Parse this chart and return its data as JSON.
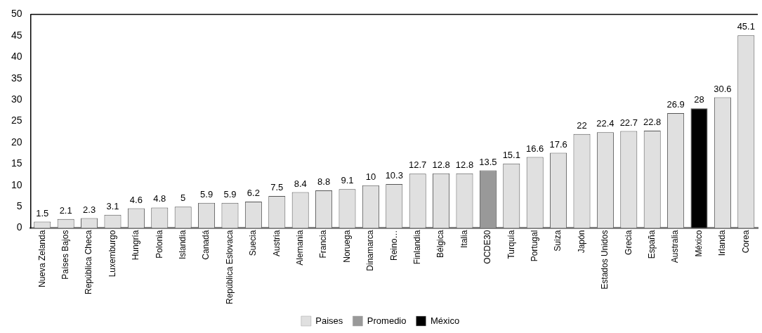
{
  "chart_data": {
    "type": "bar",
    "categories": [
      "Nueva Zelanda",
      "Países Bajos",
      "República Checa",
      "Luxemburgo",
      "Hungría",
      "Polonia",
      "Islandia",
      "Canadá",
      "República Eslovaca",
      "Suecia",
      "Austria",
      "Alemania",
      "Francia",
      "Noruega",
      "Dinamarca",
      "Reino…",
      "Finlandia",
      "Bélgica",
      "Italia",
      "OCDE30",
      "Turquía",
      "Portugal",
      "Suiza",
      "Japón",
      "Estados Unidos",
      "Grecia",
      "España",
      "Australia",
      "México",
      "Irlanda",
      "Corea"
    ],
    "series": [
      {
        "name": "Paises",
        "color": "#e0e0e0",
        "values": [
          1.5,
          2.1,
          2.3,
          3.1,
          4.6,
          4.8,
          5,
          5.9,
          5.9,
          6.2,
          7.5,
          8.4,
          8.8,
          9.1,
          10,
          10.3,
          12.7,
          12.8,
          12.8,
          null,
          15.1,
          16.6,
          17.6,
          22,
          22.4,
          22.7,
          22.8,
          26.9,
          null,
          30.6,
          45.1
        ]
      },
      {
        "name": "Promedio",
        "color": "#999999",
        "values": [
          null,
          null,
          null,
          null,
          null,
          null,
          null,
          null,
          null,
          null,
          null,
          null,
          null,
          null,
          null,
          null,
          null,
          null,
          null,
          13.5,
          null,
          null,
          null,
          null,
          null,
          null,
          null,
          null,
          null,
          null,
          null
        ]
      },
      {
        "name": "México",
        "color": "#000000",
        "values": [
          null,
          null,
          null,
          null,
          null,
          null,
          null,
          null,
          null,
          null,
          null,
          null,
          null,
          null,
          null,
          null,
          null,
          null,
          null,
          null,
          null,
          null,
          null,
          null,
          null,
          null,
          null,
          null,
          28,
          null,
          null
        ]
      }
    ],
    "ylim": [
      0,
      50
    ],
    "yticks": [
      0,
      5,
      10,
      15,
      20,
      25,
      30,
      35,
      40,
      45,
      50
    ],
    "grid": false,
    "legend": "bottom",
    "data_labels": true
  }
}
